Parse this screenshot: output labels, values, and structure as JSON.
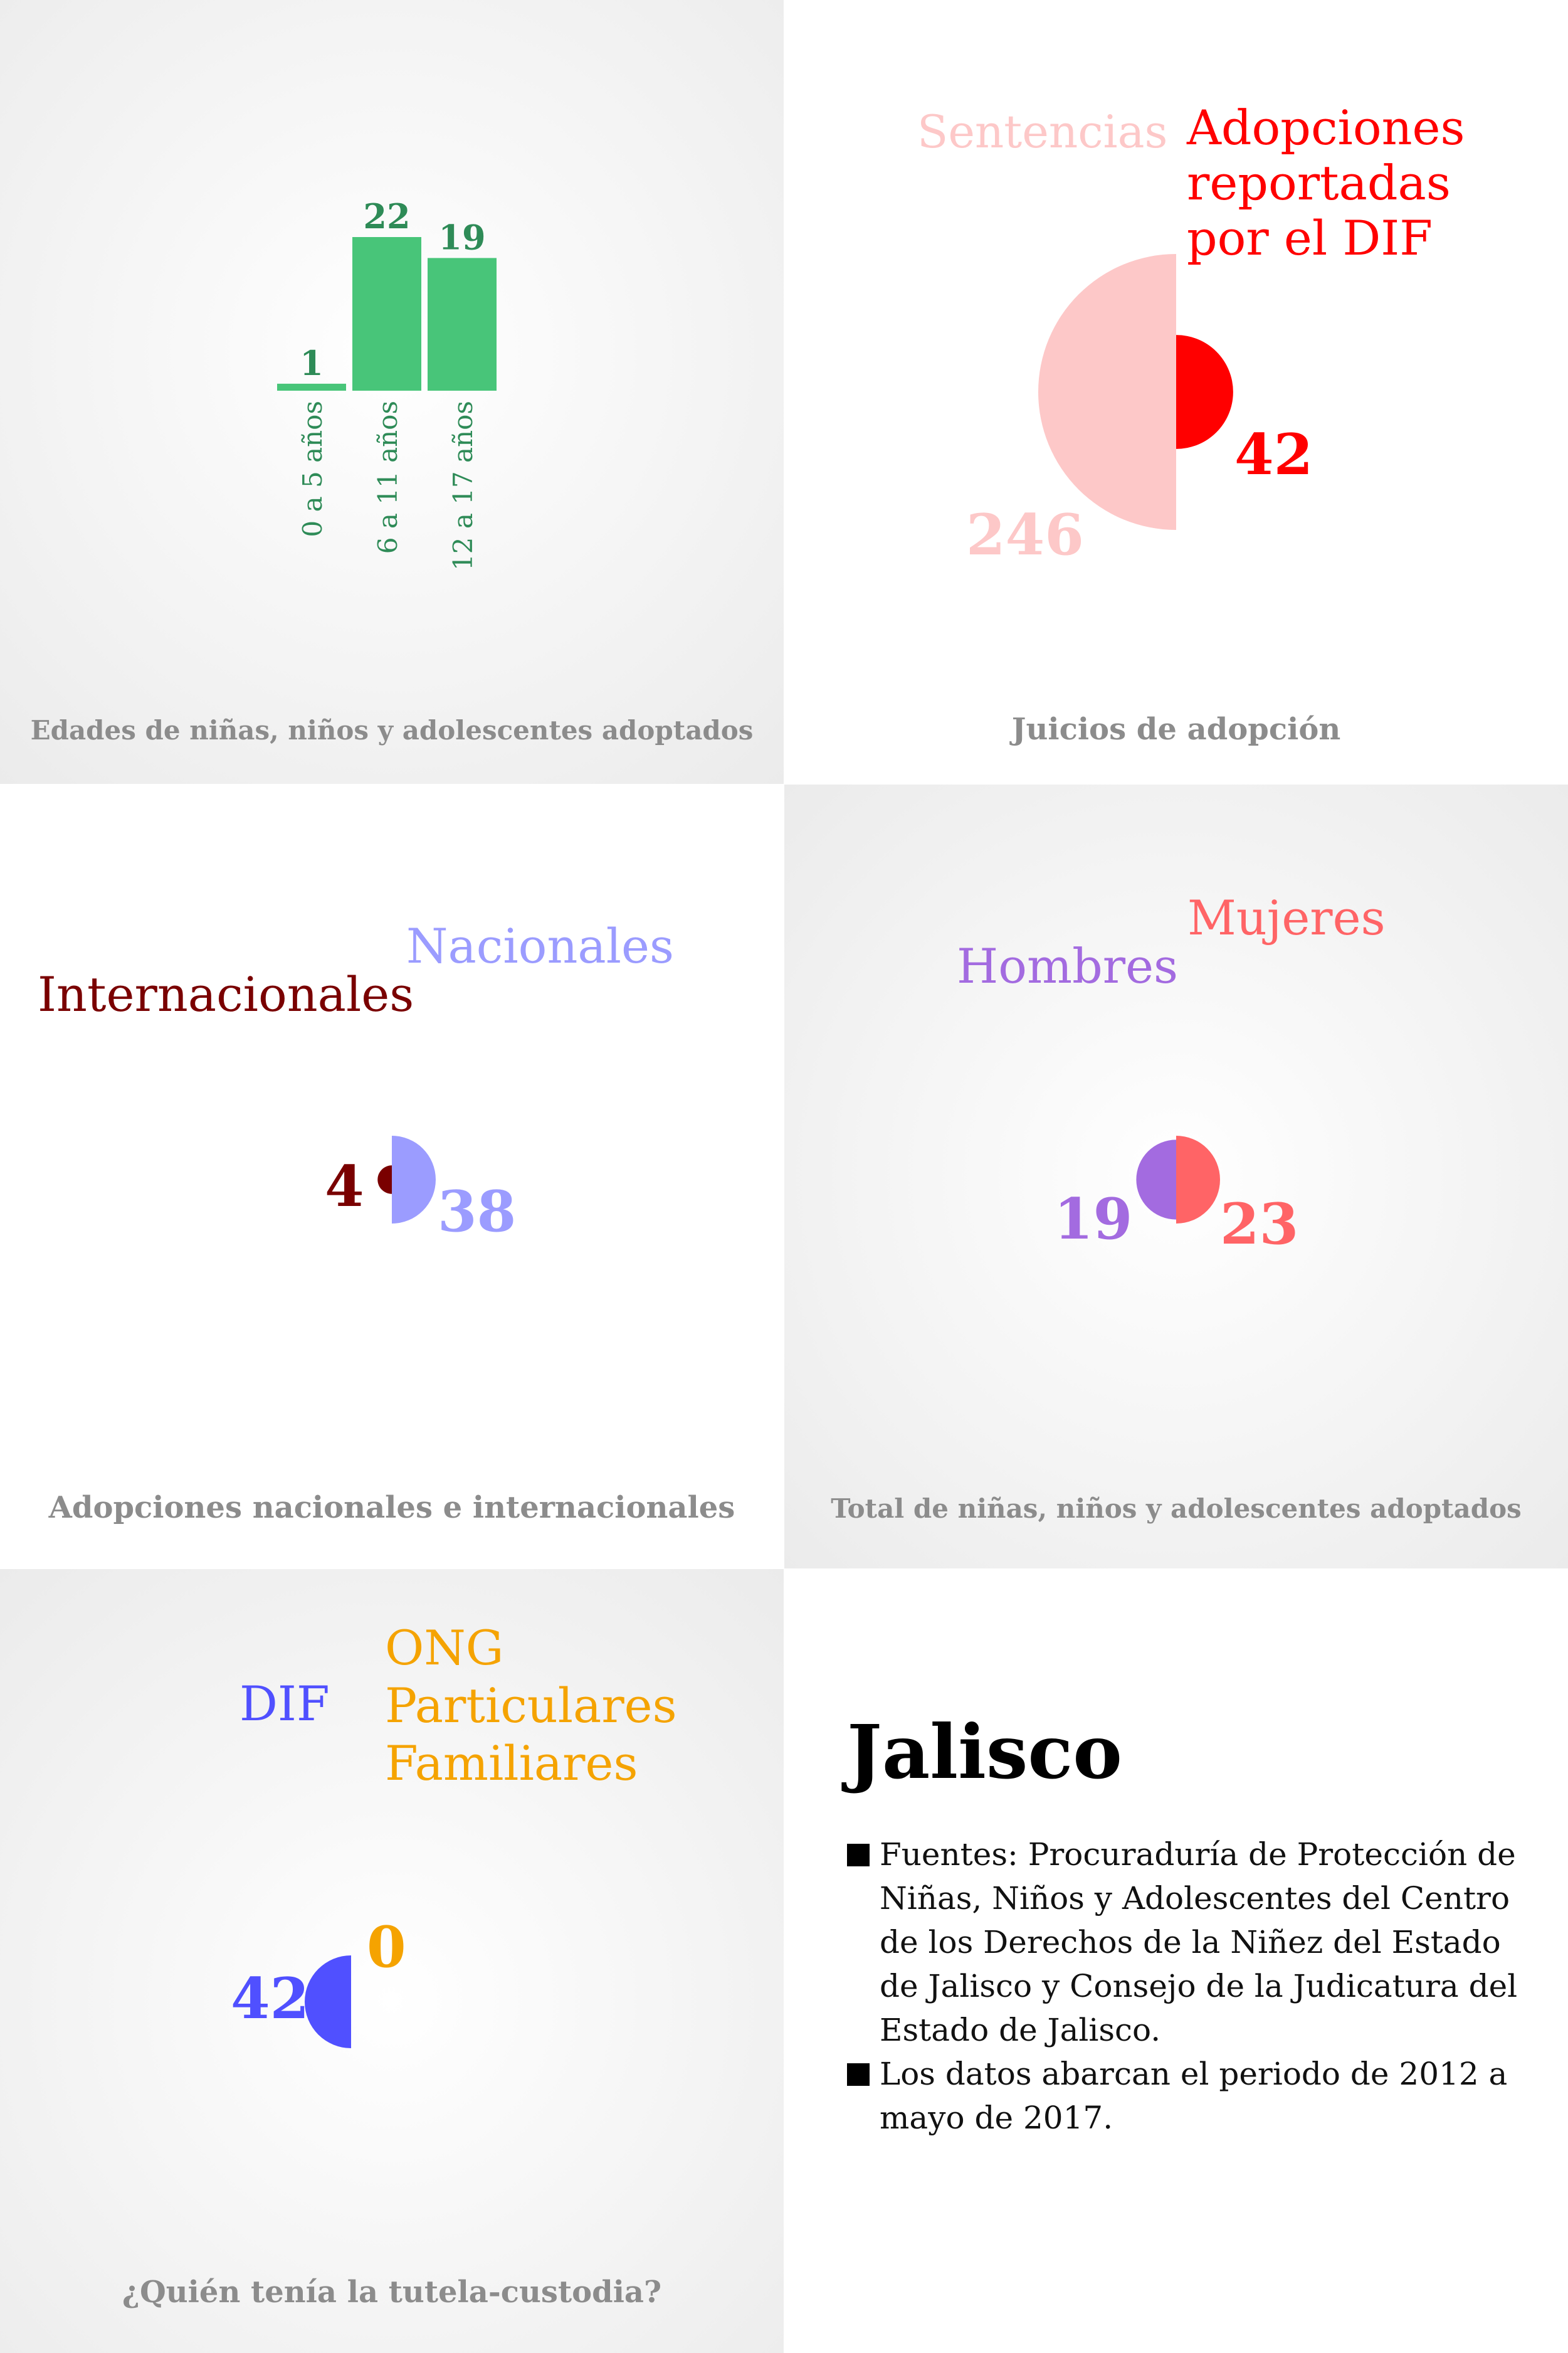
{
  "colors": {
    "green": "#48c579",
    "green_text": "#2e8b57",
    "sentencias": "#fdc8c8",
    "dif_red": "#ff0000",
    "internacionales": "#7a0000",
    "nacionales": "#9b9cff",
    "hombres": "#a36be0",
    "mujeres": "#ff6466",
    "dif_blue": "#5050ff",
    "otros_orange": "#f5a300"
  },
  "panels": {
    "edades": {
      "title": "Edades de niñas, niños y adolescentes adoptados",
      "chart_data": {
        "type": "bar",
        "categories": [
          "0 a 5 años",
          "6 a 11 años",
          "12 a 17 años"
        ],
        "values": [
          1,
          22,
          19
        ],
        "value_labels": [
          "1",
          "22",
          "19"
        ]
      }
    },
    "juicios": {
      "title": "Juicios de adopción",
      "chart_data": {
        "type": "pie",
        "series": [
          {
            "name": "Sentencias",
            "value": 246,
            "value_label": "246"
          },
          {
            "name": "Adopciones reportadas por el DIF",
            "value": 42,
            "value_label": "42"
          }
        ]
      },
      "label_left": "Sentencias",
      "label_right_lines": [
        "Adopciones",
        "reportadas",
        "por el DIF"
      ]
    },
    "nacionalidad": {
      "title": "Adopciones nacionales e internacionales",
      "chart_data": {
        "type": "pie",
        "series": [
          {
            "name": "Internacionales",
            "value": 4,
            "value_label": "4"
          },
          {
            "name": "Nacionales",
            "value": 38,
            "value_label": "38"
          }
        ]
      },
      "label_left": "Internacionales",
      "label_right": "Nacionales"
    },
    "sexo": {
      "title": "Total de niñas, niños y adolescentes adoptados",
      "chart_data": {
        "type": "pie",
        "series": [
          {
            "name": "Hombres",
            "value": 19,
            "value_label": "19"
          },
          {
            "name": "Mujeres",
            "value": 23,
            "value_label": "23"
          }
        ]
      },
      "label_left": "Hombres",
      "label_right": "Mujeres"
    },
    "tutela": {
      "title": "¿Quién tenía la tutela-custodia?",
      "chart_data": {
        "type": "pie",
        "series": [
          {
            "name": "DIF",
            "value": 42,
            "value_label": "42"
          },
          {
            "name": "ONG Particulares Familiares",
            "value": 0,
            "value_label": "0"
          }
        ]
      },
      "label_left": "DIF",
      "label_right_lines": [
        "ONG",
        "Particulares",
        "Familiares"
      ]
    }
  },
  "info": {
    "state": "Jalisco",
    "notes": [
      "Fuentes: Procuraduría de Protección de Niñas, Niños y Adolescentes del Centro de los Derechos de la Niñez del Estado de Jalisco y Consejo de la Judicatura del Estado de Jalisco.",
      "Los datos abarcan el periodo de 2012 a mayo de 2017."
    ]
  }
}
